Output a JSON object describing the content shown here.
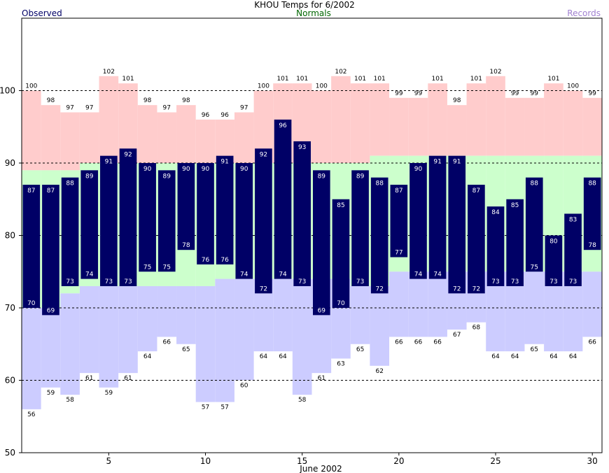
{
  "chart_data": {
    "type": "bar",
    "title": "KHOU Temps for 6/2002",
    "xlabel": "June 2002",
    "ylabel": "",
    "ylim": [
      50,
      110
    ],
    "xlim": [
      0.5,
      30.5
    ],
    "y_ticks": [
      50,
      60,
      70,
      80,
      90,
      100
    ],
    "x_ticks": [
      5,
      10,
      15,
      20,
      25,
      30
    ],
    "grid_lines": [
      60,
      70,
      80,
      90,
      100
    ],
    "legend": [
      {
        "name": "Observed",
        "color": "#000066",
        "position": "top-left"
      },
      {
        "name": "Normals",
        "color": "#006600",
        "position": "top-center"
      },
      {
        "name": "Records",
        "color": "#a080d0",
        "position": "top-right"
      }
    ],
    "colors": {
      "observed_fill": "#000066",
      "normal_fill": "#ccffcc",
      "record_high_fill": "#ffcccc",
      "record_low_fill": "#ccccff",
      "grid": "#000000",
      "value_label_on_bar": "#ffffff",
      "value_label": "#000000"
    },
    "days": [
      1,
      2,
      3,
      4,
      5,
      6,
      7,
      8,
      9,
      10,
      11,
      12,
      13,
      14,
      15,
      16,
      17,
      18,
      19,
      20,
      21,
      22,
      23,
      24,
      25,
      26,
      27,
      28,
      29,
      30
    ],
    "observed_high": [
      87,
      87,
      88,
      89,
      91,
      92,
      90,
      89,
      90,
      90,
      91,
      90,
      92,
      96,
      93,
      89,
      85,
      89,
      88,
      87,
      90,
      91,
      91,
      87,
      84,
      85,
      88,
      80,
      83,
      88
    ],
    "observed_low": [
      70,
      69,
      73,
      74,
      73,
      73,
      75,
      75,
      78,
      76,
      76,
      74,
      72,
      74,
      73,
      69,
      70,
      73,
      72,
      77,
      74,
      74,
      72,
      72,
      73,
      73,
      75,
      73,
      73,
      78
    ],
    "normal_high": [
      89,
      89,
      89,
      90,
      90,
      90,
      90,
      90,
      90,
      90,
      90,
      90,
      90,
      90,
      90,
      90,
      90,
      90,
      91,
      91,
      91,
      91,
      91,
      91,
      91,
      91,
      91,
      91,
      91,
      91
    ],
    "normal_low": [
      70,
      70,
      72,
      73,
      73,
      73,
      73,
      73,
      73,
      73,
      74,
      74,
      74,
      74,
      74,
      74,
      74,
      73,
      73,
      75,
      75,
      75,
      75,
      75,
      75,
      75,
      75,
      75,
      75,
      75
    ],
    "record_high": [
      100,
      98,
      97,
      97,
      102,
      101,
      98,
      97,
      98,
      96,
      96,
      97,
      100,
      101,
      101,
      100,
      102,
      101,
      101,
      99,
      99,
      101,
      98,
      101,
      102,
      99,
      99,
      101,
      100,
      99
    ],
    "record_low": [
      56,
      59,
      58,
      61,
      59,
      61,
      64,
      66,
      65,
      57,
      57,
      60,
      64,
      64,
      58,
      61,
      63,
      65,
      62,
      66,
      66,
      66,
      67,
      68,
      64,
      64,
      65,
      64,
      64,
      66
    ]
  }
}
